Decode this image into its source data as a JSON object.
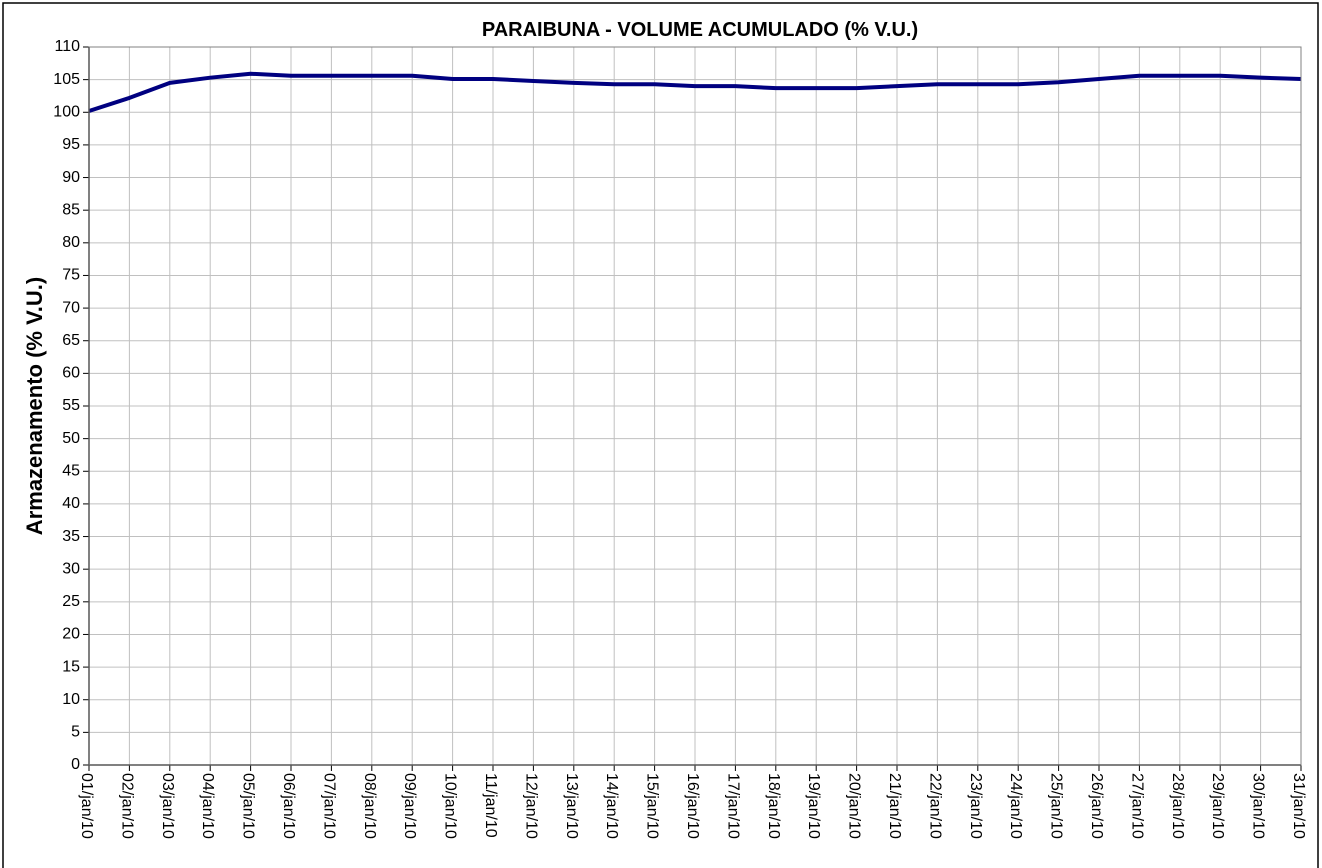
{
  "chart_data": {
    "type": "line",
    "title": "PARAIBUNA - VOLUME ACUMULADO (% V.U.)",
    "y_label": "Armazenamento (% V.U.)",
    "categories": [
      "01/jan/10",
      "02/jan/10",
      "03/jan/10",
      "04/jan/10",
      "05/jan/10",
      "06/jan/10",
      "07/jan/10",
      "08/jan/10",
      "09/jan/10",
      "10/jan/10",
      "11/jan/10",
      "12/jan/10",
      "13/jan/10",
      "14/jan/10",
      "15/jan/10",
      "16/jan/10",
      "17/jan/10",
      "18/jan/10",
      "19/jan/10",
      "20/jan/10",
      "21/jan/10",
      "22/jan/10",
      "23/jan/10",
      "24/jan/10",
      "25/jan/10",
      "26/jan/10",
      "27/jan/10",
      "28/jan/10",
      "29/jan/10",
      "30/jan/10",
      "31/jan/10"
    ],
    "values": [
      100.2,
      102.2,
      104.5,
      105.3,
      105.9,
      105.6,
      105.6,
      105.6,
      105.6,
      105.1,
      105.1,
      104.8,
      104.5,
      104.3,
      104.3,
      104.0,
      104.0,
      103.7,
      103.7,
      103.7,
      104.0,
      104.3,
      104.3,
      104.3,
      104.6,
      105.1,
      105.6,
      105.6,
      105.6,
      105.3,
      105.1
    ],
    "color": "#000080",
    "ylim": [
      0,
      110
    ],
    "yticks": [
      0,
      5,
      10,
      15,
      20,
      25,
      30,
      35,
      40,
      45,
      50,
      55,
      60,
      65,
      70,
      75,
      80,
      85,
      90,
      95,
      100,
      105,
      110
    ],
    "grid": true
  }
}
